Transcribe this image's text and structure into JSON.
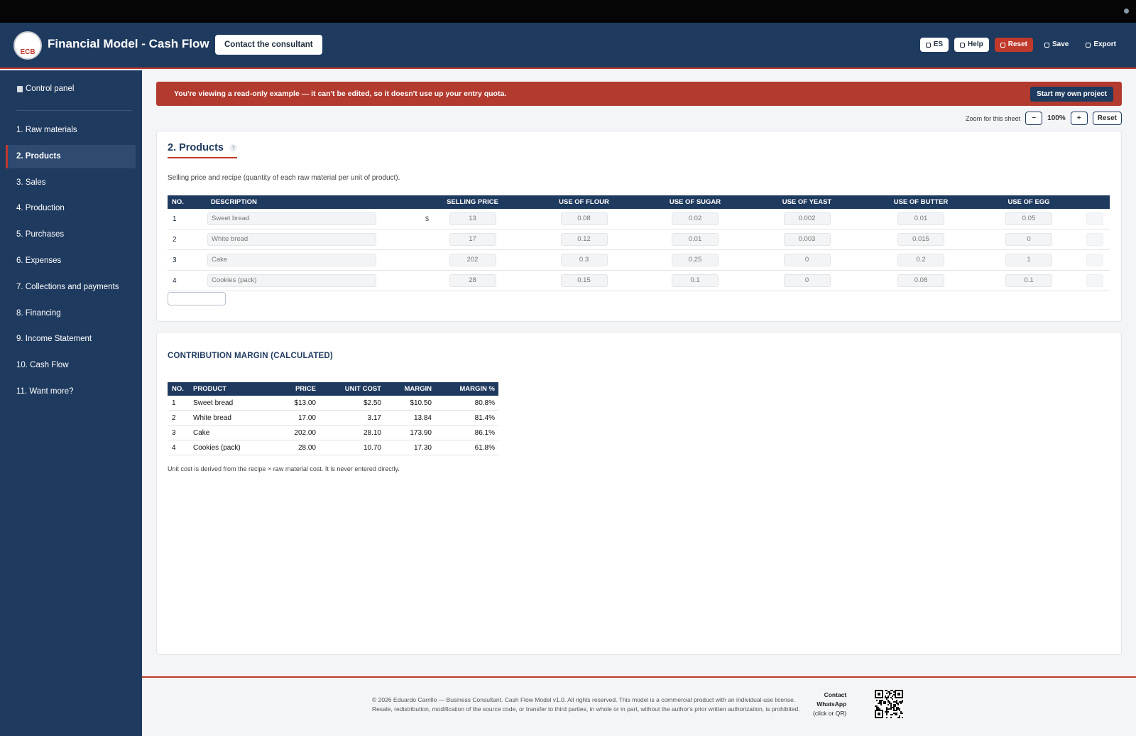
{
  "header": {
    "logo": "ECB",
    "title": "Financial Model - Cash Flow",
    "contact_button": "Contact the consultant",
    "buttons": [
      "ES",
      "Help",
      "Reset",
      "Save",
      "Export"
    ]
  },
  "sidebar": {
    "control_panel": "Control panel",
    "items": [
      "1. Raw materials",
      "2. Products",
      "3. Sales",
      "4. Production",
      "5. Purchases",
      "6. Expenses",
      "7. Collections and payments",
      "8. Financing",
      "9. Income Statement",
      "10. Cash Flow",
      "11. Want more?"
    ]
  },
  "banner": {
    "text": "You're viewing a read-only example — it can't be edited, so it doesn't use up your entry quota.",
    "button": "Start my own project"
  },
  "zoom": {
    "label": "Zoom for this sheet",
    "minus": "−",
    "value": "100%",
    "plus": "+",
    "reset": "Reset"
  },
  "products": {
    "title": "2. Products",
    "help": "?",
    "description": "Selling price and recipe (quantity of each raw material per unit of product).",
    "currency": "$",
    "table": {
      "headers": [
        "NO.",
        "DESCRIPTION",
        "SELLING PRICE",
        "USE OF FLOUR",
        "USE OF SUGAR",
        "USE OF YEAST",
        "USE OF BUTTER",
        "USE OF EGG"
      ],
      "rows": [
        [
          "1",
          "Sweet bread",
          "13",
          "0.08",
          "0.02",
          "0.002",
          "0.01",
          "0.05"
        ],
        [
          "2",
          "White bread",
          "17",
          "0.12",
          "0.01",
          "0.003",
          "0.015",
          "0"
        ],
        [
          "3",
          "Cake",
          "202",
          "0.3",
          "0.25",
          "0",
          "0.2",
          "1"
        ],
        [
          "4",
          "Cookies (pack)",
          "28",
          "0.15",
          "0.1",
          "0",
          "0.08",
          "0.1"
        ]
      ]
    }
  },
  "margin": {
    "title": "CONTRIBUTION MARGIN (CALCULATED)",
    "table": {
      "headers": [
        "NO.",
        "PRODUCT",
        "PRICE",
        "UNIT COST",
        "MARGIN",
        "MARGIN %"
      ],
      "rows": [
        [
          "1",
          "Sweet bread",
          "$13.00",
          "$2.50",
          "$10.50",
          "80.8%"
        ],
        [
          "2",
          "White bread",
          "17.00",
          "3.17",
          "13.84",
          "81.4%"
        ],
        [
          "3",
          "Cake",
          "202.00",
          "28.10",
          "173.90",
          "86.1%"
        ],
        [
          "4",
          "Cookies (pack)",
          "28.00",
          "10.70",
          "17.30",
          "61.8%"
        ]
      ]
    },
    "note": "Unit cost is derived from the recipe × raw material cost. It is never entered directly."
  },
  "footer": {
    "lines": [
      "© 2026 Eduardo Carrillo — Business Consultant. Cash Flow Model v1.0. All rights reserved. This model is a commercial product with an individual-use license.",
      "Resale, redistribution, modification of the source code, or transfer to third parties, in whole or in part, without the author's prior written authorization, is prohibited."
    ],
    "contact": [
      "Contact",
      "WhatsApp",
      "(click or QR)"
    ]
  }
}
